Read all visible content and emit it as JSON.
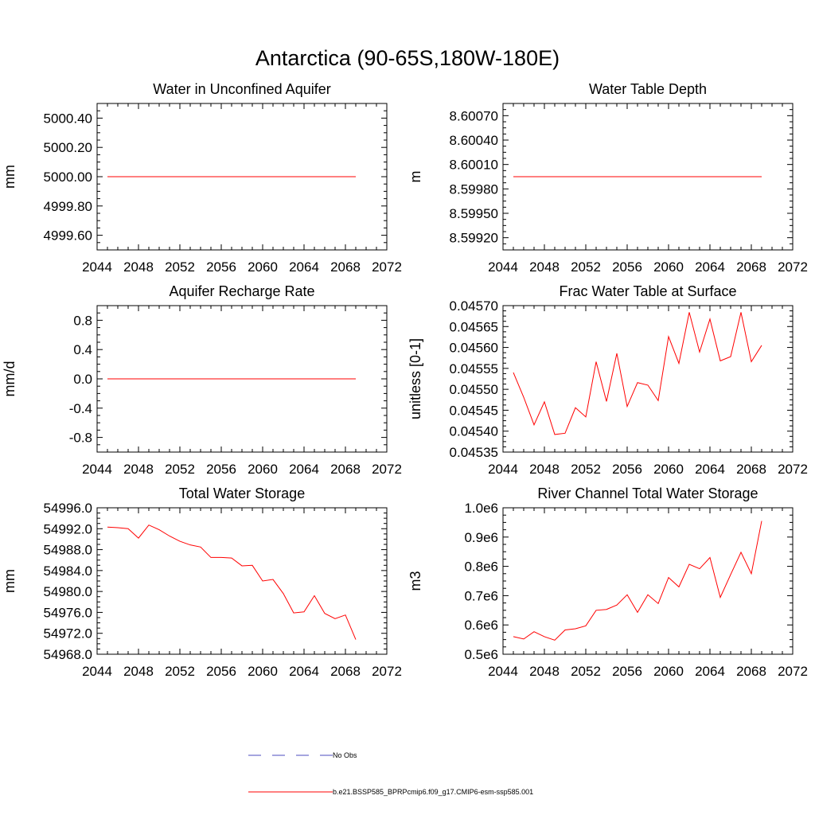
{
  "figure": {
    "title": "Antarctica (90-65S,180W-180E)",
    "line_color": "#ff0000",
    "obs_color": "#4b4bbf"
  },
  "legend": {
    "obs_label": "No Obs",
    "model_label": "b.e21.BSSP585_BPRPcmip6.f09_g17.CMIP6-esm-ssp585.001"
  },
  "chart_data": [
    {
      "type": "line",
      "title": "Water in Unconfined Aquifer",
      "ylabel": "mm",
      "xlim": [
        2044,
        2072
      ],
      "ylim": [
        4999.5,
        5000.5
      ],
      "xticks": [
        2044,
        2048,
        2052,
        2056,
        2060,
        2064,
        2068,
        2072
      ],
      "xtick_labels": [
        "2044",
        "2048",
        "2052",
        "2056",
        "2060",
        "2064",
        "2068",
        "2072"
      ],
      "yticks": [
        4999.6,
        4999.8,
        5000.0,
        5000.2,
        5000.4
      ],
      "ytick_labels": [
        "4999.60",
        "4999.80",
        "5000.00",
        "5000.20",
        "5000.40"
      ],
      "x": [
        2045,
        2046,
        2047,
        2048,
        2049,
        2050,
        2051,
        2052,
        2053,
        2054,
        2055,
        2056,
        2057,
        2058,
        2059,
        2060,
        2061,
        2062,
        2063,
        2064,
        2065,
        2066,
        2067,
        2068,
        2069
      ],
      "y": [
        5000.0,
        5000.0,
        5000.0,
        5000.0,
        5000.0,
        5000.0,
        5000.0,
        5000.0,
        5000.0,
        5000.0,
        5000.0,
        5000.0,
        5000.0,
        5000.0,
        5000.0,
        5000.0,
        5000.0,
        5000.0,
        5000.0,
        5000.0,
        5000.0,
        5000.0,
        5000.0,
        5000.0,
        5000.0
      ]
    },
    {
      "type": "line",
      "title": "Water Table Depth",
      "ylabel": "m",
      "xlim": [
        2044,
        2072
      ],
      "ylim": [
        8.59905,
        8.60085
      ],
      "xticks": [
        2044,
        2048,
        2052,
        2056,
        2060,
        2064,
        2068,
        2072
      ],
      "xtick_labels": [
        "2044",
        "2048",
        "2052",
        "2056",
        "2060",
        "2064",
        "2068",
        "2072"
      ],
      "yticks": [
        8.5992,
        8.5995,
        8.5998,
        8.6001,
        8.6004,
        8.6007
      ],
      "ytick_labels": [
        "8.59920",
        "8.59950",
        "8.59980",
        "8.60010",
        "8.60040",
        "8.60070"
      ],
      "x": [
        2045,
        2046,
        2047,
        2048,
        2049,
        2050,
        2051,
        2052,
        2053,
        2054,
        2055,
        2056,
        2057,
        2058,
        2059,
        2060,
        2061,
        2062,
        2063,
        2064,
        2065,
        2066,
        2067,
        2068,
        2069
      ],
      "y": [
        8.59995,
        8.59995,
        8.59995,
        8.59995,
        8.59995,
        8.59995,
        8.59995,
        8.59995,
        8.59995,
        8.59995,
        8.59995,
        8.59995,
        8.59995,
        8.59995,
        8.59995,
        8.59995,
        8.59995,
        8.59995,
        8.59995,
        8.59995,
        8.59995,
        8.59995,
        8.59995,
        8.59995,
        8.59995
      ]
    },
    {
      "type": "line",
      "title": "Aquifer Recharge Rate",
      "ylabel": "mm/d",
      "xlim": [
        2044,
        2072
      ],
      "ylim": [
        -1.0,
        1.0
      ],
      "xticks": [
        2044,
        2048,
        2052,
        2056,
        2060,
        2064,
        2068,
        2072
      ],
      "xtick_labels": [
        "2044",
        "2048",
        "2052",
        "2056",
        "2060",
        "2064",
        "2068",
        "2072"
      ],
      "yticks": [
        -0.8,
        -0.4,
        0.0,
        0.4,
        0.8
      ],
      "ytick_labels": [
        "-0.8",
        "-0.4",
        "0.0",
        "0.4",
        "0.8"
      ],
      "x": [
        2045,
        2046,
        2047,
        2048,
        2049,
        2050,
        2051,
        2052,
        2053,
        2054,
        2055,
        2056,
        2057,
        2058,
        2059,
        2060,
        2061,
        2062,
        2063,
        2064,
        2065,
        2066,
        2067,
        2068,
        2069
      ],
      "y": [
        0,
        0,
        0,
        0,
        0,
        0,
        0,
        0,
        0,
        0,
        0,
        0,
        0,
        0,
        0,
        0,
        0,
        0,
        0,
        0,
        0,
        0,
        0,
        0,
        0
      ]
    },
    {
      "type": "line",
      "title": "Frac Water Table at Surface",
      "ylabel": "unitless [0-1]",
      "xlim": [
        2044,
        2072
      ],
      "ylim": [
        0.04535,
        0.0457
      ],
      "xticks": [
        2044,
        2048,
        2052,
        2056,
        2060,
        2064,
        2068,
        2072
      ],
      "xtick_labels": [
        "2044",
        "2048",
        "2052",
        "2056",
        "2060",
        "2064",
        "2068",
        "2072"
      ],
      "yticks": [
        0.04535,
        0.0454,
        0.04545,
        0.0455,
        0.04555,
        0.0456,
        0.04565,
        0.0457
      ],
      "ytick_labels": [
        "0.04535",
        "0.04540",
        "0.04545",
        "0.04550",
        "0.04555",
        "0.04560",
        "0.04565",
        "0.04570"
      ],
      "x": [
        2045,
        2046,
        2047,
        2048,
        2049,
        2050,
        2051,
        2052,
        2053,
        2054,
        2055,
        2056,
        2057,
        2058,
        2059,
        2060,
        2061,
        2062,
        2063,
        2064,
        2065,
        2066,
        2067,
        2068,
        2069
      ],
      "y": [
        0.04554,
        0.045481,
        0.045415,
        0.04547,
        0.045392,
        0.045395,
        0.045456,
        0.045434,
        0.045566,
        0.045471,
        0.045586,
        0.045459,
        0.045516,
        0.04551,
        0.045473,
        0.045626,
        0.045562,
        0.045684,
        0.045589,
        0.045668,
        0.045568,
        0.045578,
        0.045684,
        0.045566,
        0.045605
      ]
    },
    {
      "type": "line",
      "title": "Total Water Storage",
      "ylabel": "mm",
      "xlim": [
        2044,
        2072
      ],
      "ylim": [
        54968.0,
        54996.0
      ],
      "xticks": [
        2044,
        2048,
        2052,
        2056,
        2060,
        2064,
        2068,
        2072
      ],
      "xtick_labels": [
        "2044",
        "2048",
        "2052",
        "2056",
        "2060",
        "2064",
        "2068",
        "2072"
      ],
      "yticks": [
        54968.0,
        54972.0,
        54976.0,
        54980.0,
        54984.0,
        54988.0,
        54992.0,
        54996.0
      ],
      "ytick_labels": [
        "54968.0",
        "54972.0",
        "54976.0",
        "54980.0",
        "54984.0",
        "54988.0",
        "54992.0",
        "54996.0"
      ],
      "x": [
        2045,
        2046,
        2047,
        2048,
        2049,
        2050,
        2051,
        2052,
        2053,
        2054,
        2055,
        2056,
        2057,
        2058,
        2059,
        2060,
        2061,
        2062,
        2063,
        2064,
        2065,
        2066,
        2067,
        2068,
        2069
      ],
      "y": [
        54992.3,
        54992.2,
        54992.0,
        54990.2,
        54992.7,
        54991.8,
        54990.6,
        54989.6,
        54988.9,
        54988.5,
        54986.5,
        54986.5,
        54986.4,
        54984.9,
        54985.0,
        54982.0,
        54982.3,
        54979.6,
        54975.9,
        54976.1,
        54979.2,
        54975.8,
        54974.8,
        54975.5,
        54970.8
      ]
    },
    {
      "type": "line",
      "title": "River Channel Total Water Storage",
      "ylabel": "m3",
      "xlim": [
        2044,
        2072
      ],
      "ylim": [
        500000,
        1000000
      ],
      "xticks": [
        2044,
        2048,
        2052,
        2056,
        2060,
        2064,
        2068,
        2072
      ],
      "xtick_labels": [
        "2044",
        "2048",
        "2052",
        "2056",
        "2060",
        "2064",
        "2068",
        "2072"
      ],
      "yticks": [
        500000,
        600000,
        700000,
        800000,
        900000,
        1000000
      ],
      "ytick_labels": [
        "0.5e6",
        "0.6e6",
        "0.7e6",
        "0.8e6",
        "0.9e6",
        "1.0e6"
      ],
      "x": [
        2045,
        2046,
        2047,
        2048,
        2049,
        2050,
        2051,
        2052,
        2053,
        2054,
        2055,
        2056,
        2057,
        2058,
        2059,
        2060,
        2061,
        2062,
        2063,
        2064,
        2065,
        2066,
        2067,
        2068,
        2069
      ],
      "y": [
        560000,
        552000,
        577000,
        560000,
        548000,
        583000,
        587000,
        597000,
        650000,
        653000,
        668000,
        703000,
        643000,
        703000,
        673000,
        762000,
        730000,
        807000,
        792000,
        830000,
        694000,
        772000,
        848000,
        775000,
        955000
      ]
    }
  ]
}
